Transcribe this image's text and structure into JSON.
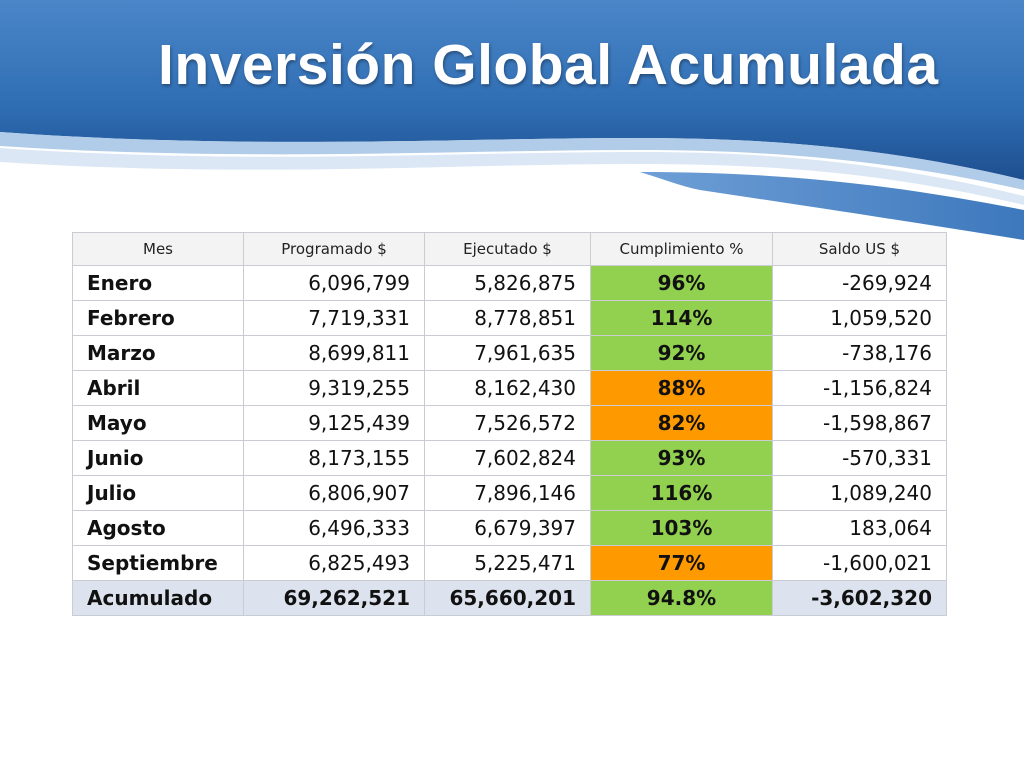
{
  "slide": {
    "title": "Inversión Global Acumulada",
    "colors": {
      "header_blue": "#1f5a9c",
      "highlight_green": "#92d050",
      "highlight_orange": "#ff9900",
      "total_row": "#dce3ef"
    }
  },
  "table": {
    "headers": [
      "Mes",
      "Programado $",
      "Ejecutado $",
      "Cumplimiento %",
      "Saldo US $"
    ],
    "rows": [
      {
        "mes": "Enero",
        "programado": "6,096,799",
        "ejecutado": "5,826,875",
        "cumplimiento": "96%",
        "saldo": "-269,924",
        "status": "green"
      },
      {
        "mes": "Febrero",
        "programado": "7,719,331",
        "ejecutado": "8,778,851",
        "cumplimiento": "114%",
        "saldo": "1,059,520",
        "status": "green"
      },
      {
        "mes": "Marzo",
        "programado": "8,699,811",
        "ejecutado": "7,961,635",
        "cumplimiento": "92%",
        "saldo": "-738,176",
        "status": "green"
      },
      {
        "mes": "Abril",
        "programado": "9,319,255",
        "ejecutado": "8,162,430",
        "cumplimiento": "88%",
        "saldo": "-1,156,824",
        "status": "orange"
      },
      {
        "mes": "Mayo",
        "programado": "9,125,439",
        "ejecutado": "7,526,572",
        "cumplimiento": "82%",
        "saldo": "-1,598,867",
        "status": "orange"
      },
      {
        "mes": "Junio",
        "programado": "8,173,155",
        "ejecutado": "7,602,824",
        "cumplimiento": "93%",
        "saldo": "-570,331",
        "status": "green"
      },
      {
        "mes": "Julio",
        "programado": "6,806,907",
        "ejecutado": "7,896,146",
        "cumplimiento": "116%",
        "saldo": "1,089,240",
        "status": "green"
      },
      {
        "mes": "Agosto",
        "programado": "6,496,333",
        "ejecutado": "6,679,397",
        "cumplimiento": "103%",
        "saldo": "183,064",
        "status": "green"
      },
      {
        "mes": "Septiembre",
        "programado": "6,825,493",
        "ejecutado": "5,225,471",
        "cumplimiento": "77%",
        "saldo": "-1,600,021",
        "status": "orange"
      }
    ],
    "total": {
      "mes": "Acumulado",
      "programado": "69,262,521",
      "ejecutado": "65,660,201",
      "cumplimiento": "94.8%",
      "saldo": "-3,602,320",
      "status": "green"
    }
  }
}
